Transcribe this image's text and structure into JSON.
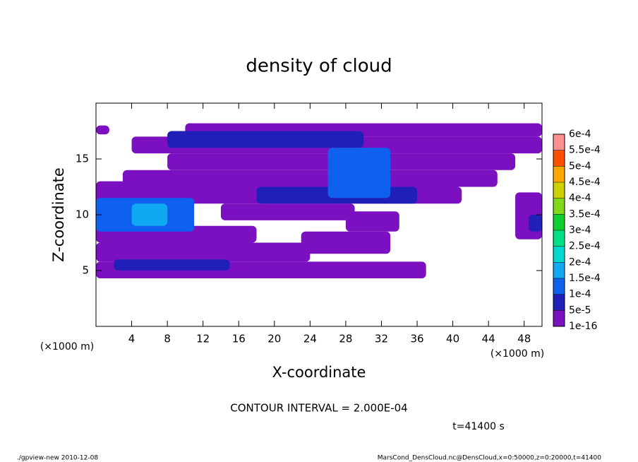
{
  "chart_data": {
    "type": "contour",
    "title": "density of cloud",
    "x_label": "X-coordinate",
    "y_label": "Z-coordinate",
    "x_unit": "(×1000 m)",
    "y_unit": "(×1000 m)",
    "contour_interval": "CONTOUR INTERVAL = 2.000E-04",
    "time_label": "t=41400 s",
    "footer_left": "./gpview-new  2010-12-08",
    "footer_right": "MarsCond_DensCloud.nc@DensCloud,x=0:50000,z=0:20000,t=41400",
    "xlim": [
      0,
      50
    ],
    "ylim": [
      0,
      20
    ],
    "xticks": [
      4,
      8,
      12,
      16,
      20,
      24,
      28,
      32,
      36,
      40,
      44,
      48
    ],
    "yticks": [
      5,
      10,
      15
    ],
    "colorbar": {
      "ticks": [
        {
          "value": 1e-16,
          "label": "1e-16"
        },
        {
          "value": 5e-05,
          "label": "5e-5"
        },
        {
          "value": 0.0001,
          "label": "1e-4"
        },
        {
          "value": 0.00015,
          "label": "1.5e-4"
        },
        {
          "value": 0.0002,
          "label": "2e-4"
        },
        {
          "value": 0.00025,
          "label": "2.5e-4"
        },
        {
          "value": 0.0003,
          "label": "3e-4"
        },
        {
          "value": 0.00035,
          "label": "3.5e-4"
        },
        {
          "value": 0.0004,
          "label": "4e-4"
        },
        {
          "value": 0.00045,
          "label": "4.5e-4"
        },
        {
          "value": 0.0005,
          "label": "5e-4"
        },
        {
          "value": 0.00055,
          "label": "5.5e-4"
        },
        {
          "value": 0.0006,
          "label": "6e-4"
        }
      ],
      "colors": [
        "#7a10c0",
        "#2020b8",
        "#1060f0",
        "#10a8f0",
        "#00d8d0",
        "#00e088",
        "#10d030",
        "#80d818",
        "#d0d000",
        "#ffa800",
        "#ff5000",
        "#ff9090"
      ]
    },
    "patches": [
      {
        "x": [
          0,
          37
        ],
        "y": [
          4.3,
          5.8
        ],
        "value": 1e-16
      },
      {
        "x": [
          0,
          24
        ],
        "y": [
          5.8,
          7.5
        ],
        "value": 1e-16
      },
      {
        "x": [
          0,
          18
        ],
        "y": [
          7.5,
          9
        ],
        "value": 1e-16
      },
      {
        "x": [
          0,
          11
        ],
        "y": [
          9,
          13
        ],
        "value": 1e-16
      },
      {
        "x": [
          23,
          33
        ],
        "y": [
          6.5,
          8.5
        ],
        "value": 1e-16
      },
      {
        "x": [
          28,
          34
        ],
        "y": [
          8.5,
          10.3
        ],
        "value": 1e-16
      },
      {
        "x": [
          14,
          29
        ],
        "y": [
          9.5,
          11
        ],
        "value": 1e-16
      },
      {
        "x": [
          10,
          41
        ],
        "y": [
          11,
          12.5
        ],
        "value": 1e-16
      },
      {
        "x": [
          3,
          45
        ],
        "y": [
          12.5,
          14
        ],
        "value": 1e-16
      },
      {
        "x": [
          8,
          47
        ],
        "y": [
          14,
          15.5
        ],
        "value": 1e-16
      },
      {
        "x": [
          4,
          50
        ],
        "y": [
          15.5,
          17
        ],
        "value": 1e-16
      },
      {
        "x": [
          10,
          50
        ],
        "y": [
          17,
          18.2
        ],
        "value": 1e-16
      },
      {
        "x": [
          0,
          1.5
        ],
        "y": [
          17.2,
          18
        ],
        "value": 1e-16
      },
      {
        "x": [
          47,
          50
        ],
        "y": [
          7.8,
          12
        ],
        "value": 1e-16
      },
      {
        "x": [
          2,
          15
        ],
        "y": [
          5,
          6
        ],
        "value": 5e-05
      },
      {
        "x": [
          18,
          36
        ],
        "y": [
          11,
          12.5
        ],
        "value": 5e-05
      },
      {
        "x": [
          8,
          30
        ],
        "y": [
          16,
          17.5
        ],
        "value": 5e-05
      },
      {
        "x": [
          48.5,
          50
        ],
        "y": [
          8.5,
          10
        ],
        "value": 5e-05
      },
      {
        "x": [
          0,
          11
        ],
        "y": [
          8.5,
          11.5
        ],
        "value": 0.0001
      },
      {
        "x": [
          26,
          33
        ],
        "y": [
          11.5,
          16
        ],
        "value": 0.0001
      },
      {
        "x": [
          4,
          8
        ],
        "y": [
          9,
          11
        ],
        "value": 0.00015
      }
    ]
  }
}
